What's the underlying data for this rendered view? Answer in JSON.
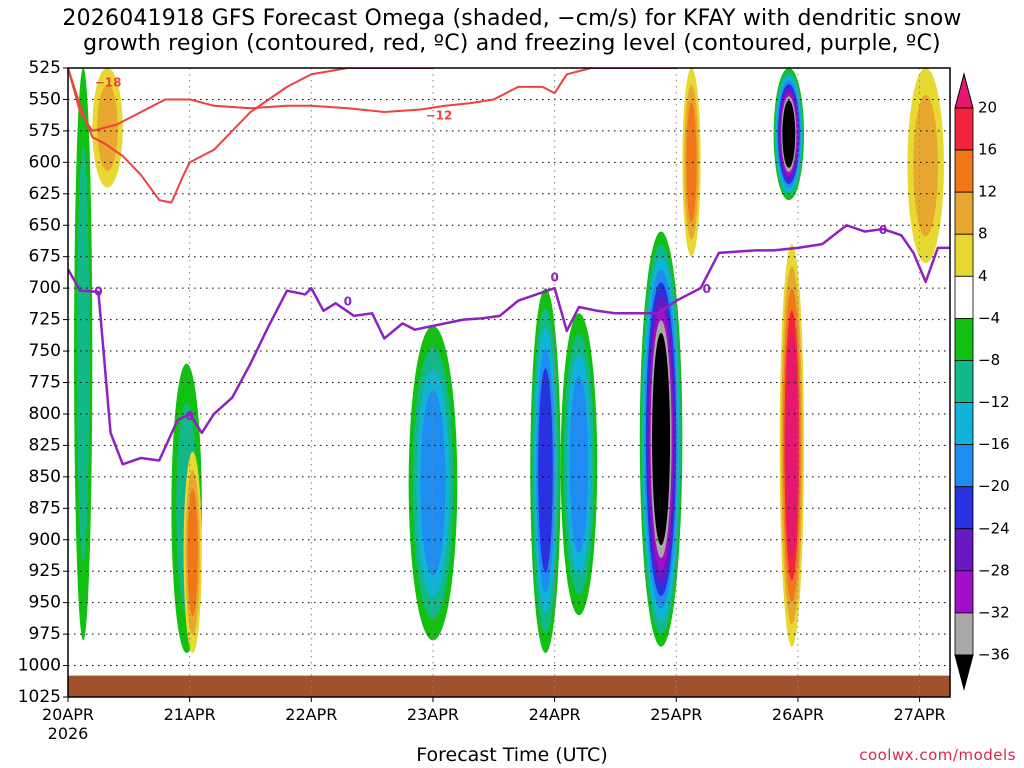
{
  "title_line1": "2026041918 GFS Forecast Omega (shaded, −cm/s) for KFAY with dendritic snow",
  "title_line2": "growth region (contoured, red, ºC) and freezing level (contoured, purple, ºC)",
  "credit": "coolwx.com/models",
  "chart_data": {
    "type": "heatmap",
    "title": "2026041918 GFS Forecast Omega (shaded, −cm/s) for KFAY with dendritic snow growth region (contoured, red, ºC) and freezing level (contoured, purple, ºC)",
    "xlabel": "Forecast Time (UTC)",
    "ylabel": "",
    "x_range_days": [
      0,
      7.25
    ],
    "x_tick_labels": [
      "20APR",
      "21APR",
      "22APR",
      "23APR",
      "24APR",
      "25APR",
      "26APR",
      "27APR"
    ],
    "x_tick_values_days": [
      0,
      1,
      2,
      3,
      4,
      5,
      6,
      7
    ],
    "x_sublabel": "2026",
    "y_range_hpa": [
      525,
      1025
    ],
    "y_tick_labels": [
      "525",
      "550",
      "575",
      "600",
      "625",
      "650",
      "675",
      "700",
      "725",
      "750",
      "775",
      "800",
      "825",
      "850",
      "875",
      "900",
      "925",
      "950",
      "975",
      "1000",
      "1025"
    ],
    "y_tick_values_hpa": [
      525,
      550,
      575,
      600,
      625,
      650,
      675,
      700,
      725,
      750,
      775,
      800,
      825,
      850,
      875,
      900,
      925,
      950,
      975,
      1000,
      1025
    ],
    "colorbar_labels": [
      "20",
      "16",
      "12",
      "8",
      "4",
      "−4",
      "−8",
      "−12",
      "−16",
      "−20",
      "−24",
      "−28",
      "−32",
      "−36"
    ],
    "colorbar_values": [
      20,
      16,
      12,
      8,
      4,
      -4,
      -8,
      -12,
      -16,
      -20,
      -24,
      -28,
      -32,
      -36
    ],
    "colorbar_colors": [
      "#e5176e",
      "#f0243c",
      "#f07818",
      "#e8a830",
      "#e8d832",
      "#ffffff",
      "#12c012",
      "#12b888",
      "#10b4d8",
      "#1e8cf0",
      "#2832e0",
      "#6818c0",
      "#a010c8",
      "#a8a8a8",
      "#000000"
    ],
    "contour_labels": [
      {
        "text": "−18",
        "color": "#f04040",
        "x_days": 0.33,
        "p_hpa": 537
      },
      {
        "text": "−12",
        "color": "#f04040",
        "x_days": 3.05,
        "p_hpa": 563
      },
      {
        "text": "0",
        "color": "#9020c0",
        "x_days": 0.25,
        "p_hpa": 703
      },
      {
        "text": "0",
        "color": "#9020c0",
        "x_days": 1.0,
        "p_hpa": 802
      },
      {
        "text": "0",
        "color": "#9020c0",
        "x_days": 2.3,
        "p_hpa": 711
      },
      {
        "text": "0",
        "color": "#9020c0",
        "x_days": 4.0,
        "p_hpa": 692
      },
      {
        "text": "0",
        "color": "#9020c0",
        "x_days": 5.25,
        "p_hpa": 701
      },
      {
        "text": "0",
        "color": "#9020c0",
        "x_days": 6.7,
        "p_hpa": 654
      }
    ],
    "freezing_level_hpa": {
      "x_days": [
        0,
        0.1,
        0.25,
        0.35,
        0.45,
        0.6,
        0.75,
        0.9,
        1.0,
        1.1,
        1.2,
        1.35,
        1.5,
        1.65,
        1.8,
        1.95,
        2.0,
        2.1,
        2.2,
        2.35,
        2.5,
        2.6,
        2.75,
        2.85,
        3.0,
        3.15,
        3.25,
        3.4,
        3.55,
        3.7,
        3.85,
        4.0,
        4.1,
        4.2,
        4.35,
        4.5,
        4.65,
        4.85,
        5.0,
        5.1,
        5.2,
        5.35,
        5.5,
        5.65,
        5.8,
        6.0,
        6.2,
        6.4,
        6.55,
        6.7,
        6.85,
        6.95,
        7.05,
        7.15,
        7.25
      ],
      "values": [
        685,
        702,
        703,
        815,
        840,
        835,
        837,
        805,
        800,
        815,
        800,
        787,
        760,
        730,
        702,
        705,
        700,
        718,
        712,
        722,
        720,
        740,
        728,
        733,
        730,
        727,
        725,
        724,
        722,
        710,
        705,
        700,
        734,
        715,
        718,
        720,
        720,
        720,
        710,
        705,
        700,
        672,
        671,
        670,
        670,
        668,
        665,
        650,
        655,
        653,
        658,
        672,
        695,
        668,
        668
      ]
    },
    "dgz_cold_edge_minus18_hpa": {
      "x_days": [
        0,
        0.1,
        0.2,
        0.3,
        0.45,
        0.6,
        0.75,
        0.85,
        0.95,
        1.0,
        1.2,
        1.5,
        1.8,
        2.0,
        2.3,
        2.6,
        3.0
      ],
      "values": [
        525,
        555,
        580,
        585,
        595,
        610,
        630,
        632,
        610,
        600,
        590,
        560,
        540,
        530,
        525,
        525,
        525
      ]
    },
    "dgz_warm_edge_minus12_hpa": {
      "x_days": [
        0,
        0.1,
        0.2,
        0.4,
        0.6,
        0.8,
        1.0,
        1.2,
        1.5,
        1.8,
        2.0,
        2.3,
        2.6,
        2.9,
        3.1,
        3.3,
        3.5,
        3.7,
        3.9,
        4.0,
        4.1,
        4.3,
        4.5,
        4.6,
        4.8,
        5.0
      ],
      "values": [
        525,
        560,
        575,
        570,
        560,
        550,
        550,
        555,
        557,
        555,
        555,
        557,
        560,
        558,
        555,
        553,
        550,
        540,
        540,
        545,
        530,
        525,
        525,
        525,
        525,
        525
      ]
    },
    "omega_features": [
      {
        "x_days": [
          0.05,
          0.2
        ],
        "p_hpa": [
          525,
          980
        ],
        "peak": -10
      },
      {
        "x_days": [
          0.2,
          0.45
        ],
        "p_hpa": [
          525,
          620
        ],
        "peak": 8
      },
      {
        "x_days": [
          0.85,
          1.1
        ],
        "p_hpa": [
          760,
          990
        ],
        "peak": -8
      },
      {
        "x_days": [
          0.95,
          1.1
        ],
        "p_hpa": [
          830,
          990
        ],
        "peak": 12
      },
      {
        "x_days": [
          2.8,
          3.2
        ],
        "p_hpa": [
          730,
          980
        ],
        "peak": -16
      },
      {
        "x_days": [
          3.8,
          4.05
        ],
        "p_hpa": [
          700,
          990
        ],
        "peak": -20
      },
      {
        "x_days": [
          4.05,
          4.35
        ],
        "p_hpa": [
          720,
          960
        ],
        "peak": -16
      },
      {
        "x_days": [
          4.7,
          5.05
        ],
        "p_hpa": [
          655,
          985
        ],
        "peak": -36
      },
      {
        "x_days": [
          5.05,
          5.2
        ],
        "p_hpa": [
          525,
          675
        ],
        "peak": 12
      },
      {
        "x_days": [
          5.8,
          6.05
        ],
        "p_hpa": [
          525,
          630
        ],
        "peak": -36
      },
      {
        "x_days": [
          5.85,
          6.05
        ],
        "p_hpa": [
          665,
          985
        ],
        "peak": 20
      },
      {
        "x_days": [
          6.9,
          7.2
        ],
        "p_hpa": [
          525,
          680
        ],
        "peak": 8
      }
    ],
    "surface_pressure_hpa": 1008
  }
}
